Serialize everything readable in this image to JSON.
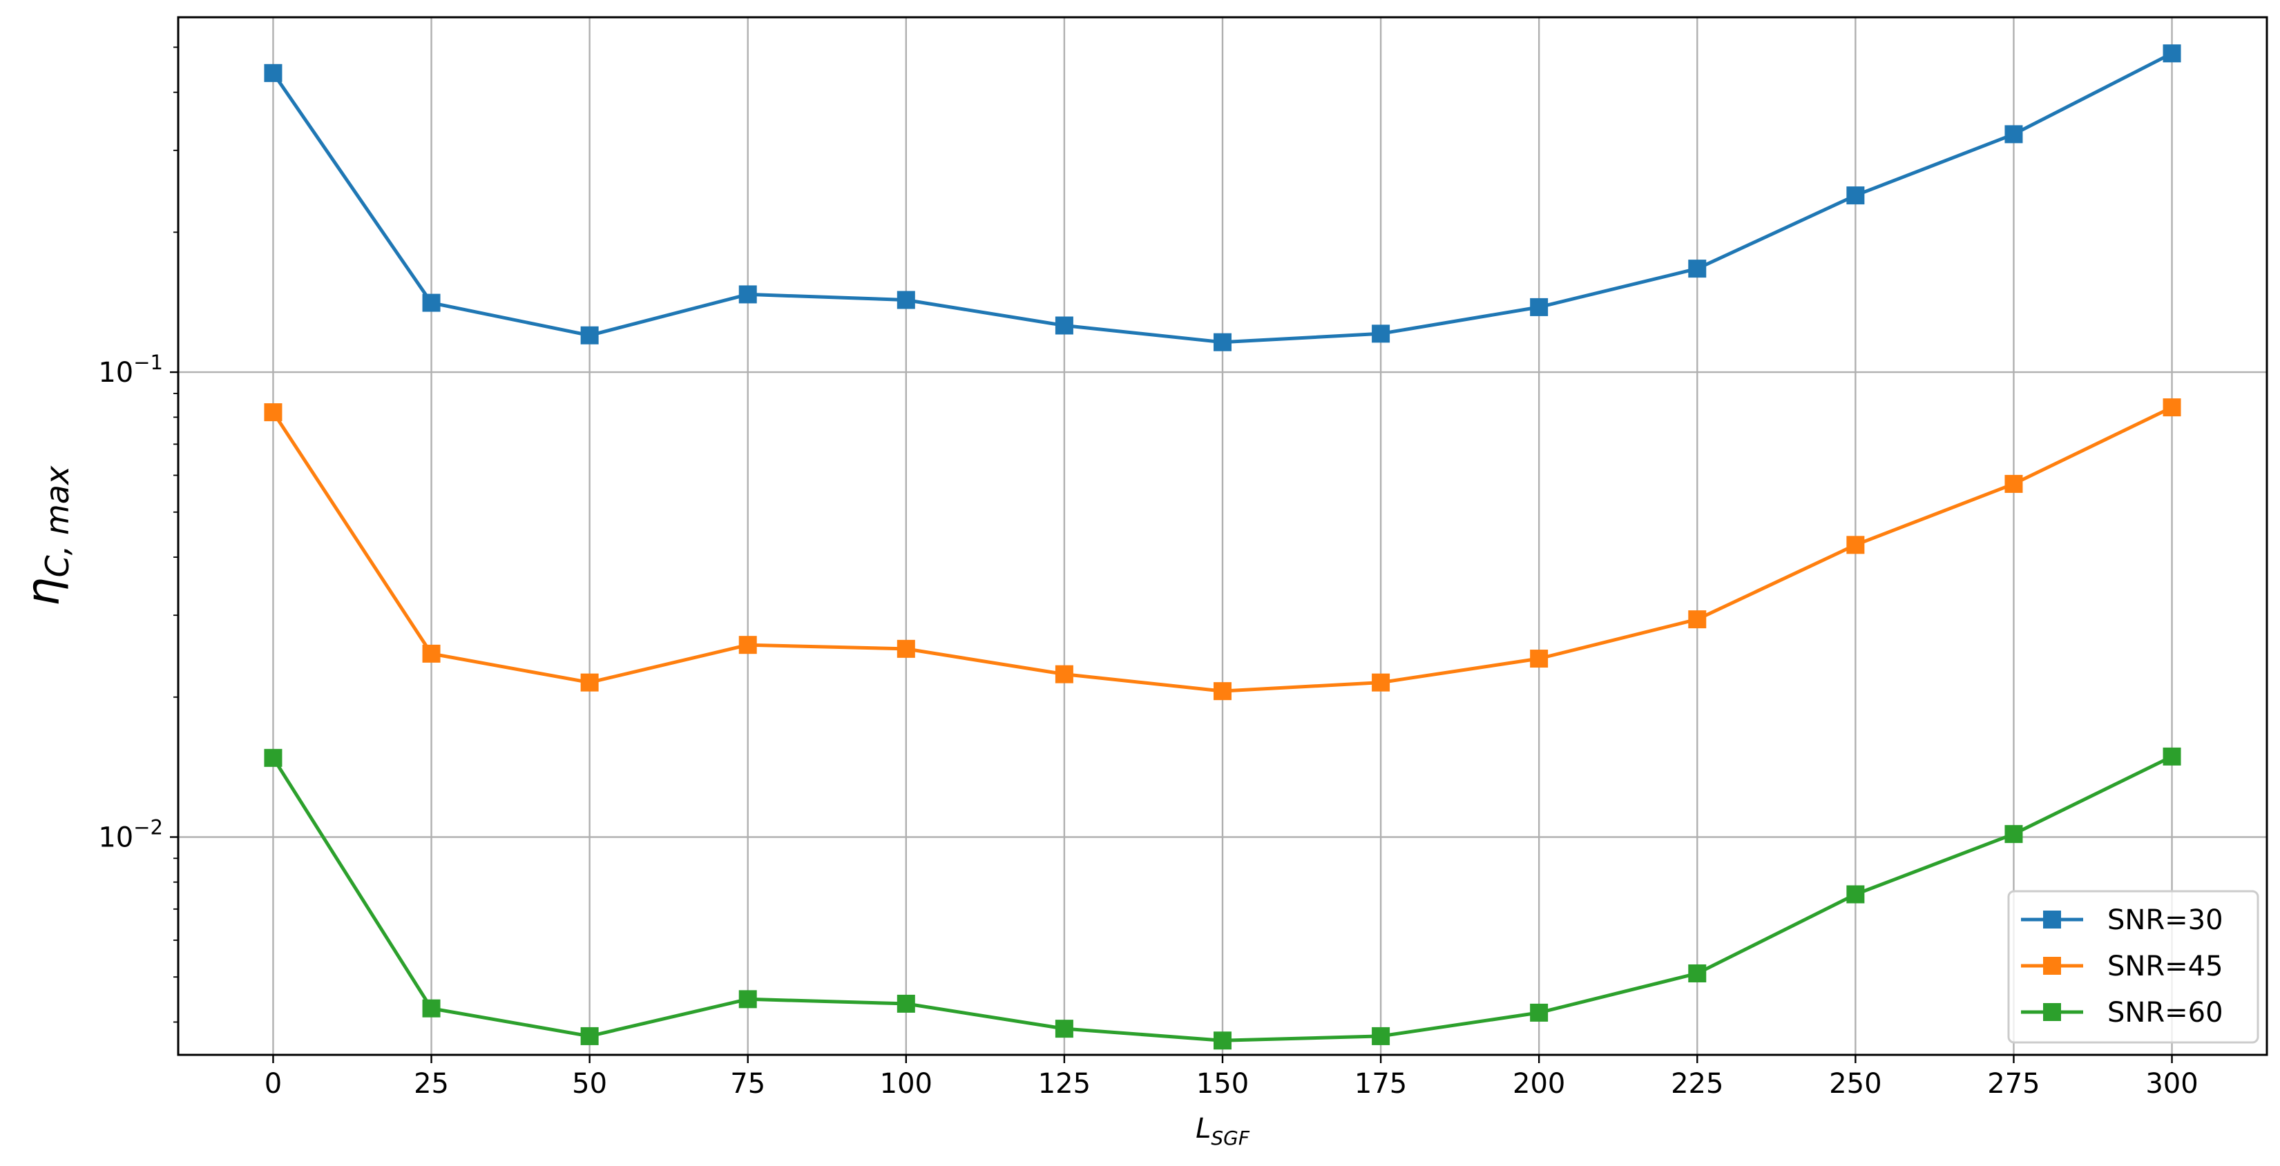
{
  "chart_data": {
    "type": "line",
    "title": "",
    "xlabel": "L",
    "xlabel_sub": "SGF",
    "ylabel": "η",
    "ylabel_sub": "C, max",
    "x": [
      0,
      25,
      50,
      75,
      100,
      125,
      150,
      175,
      200,
      225,
      250,
      275,
      300
    ],
    "xlim": [
      -15,
      315
    ],
    "ylim": [
      0.0034,
      0.58
    ],
    "yscale": "log",
    "grid": true,
    "xticks": [
      0,
      25,
      50,
      75,
      100,
      125,
      150,
      175,
      200,
      225,
      250,
      275,
      300
    ],
    "yticks_major": [
      {
        "value": 0.1,
        "base": "10",
        "exp": "−1"
      },
      {
        "value": 0.01,
        "base": "10",
        "exp": "−2"
      }
    ],
    "marker": "square",
    "legend_position": "lower right",
    "series": [
      {
        "name": "SNR=30",
        "color": "#1f77b4",
        "values": [
          0.44,
          0.141,
          0.12,
          0.147,
          0.143,
          0.126,
          0.116,
          0.121,
          0.138,
          0.167,
          0.24,
          0.325,
          0.485
        ]
      },
      {
        "name": "SNR=45",
        "color": "#ff7f0e",
        "values": [
          0.082,
          0.0248,
          0.0215,
          0.0259,
          0.0254,
          0.0224,
          0.0206,
          0.0215,
          0.0242,
          0.0294,
          0.0425,
          0.0575,
          0.084
        ]
      },
      {
        "name": "SNR=60",
        "color": "#2ca02c",
        "values": [
          0.0148,
          0.00428,
          0.00373,
          0.00448,
          0.00438,
          0.00387,
          0.00365,
          0.00373,
          0.00419,
          0.00509,
          0.00753,
          0.01015,
          0.0149
        ]
      }
    ]
  }
}
